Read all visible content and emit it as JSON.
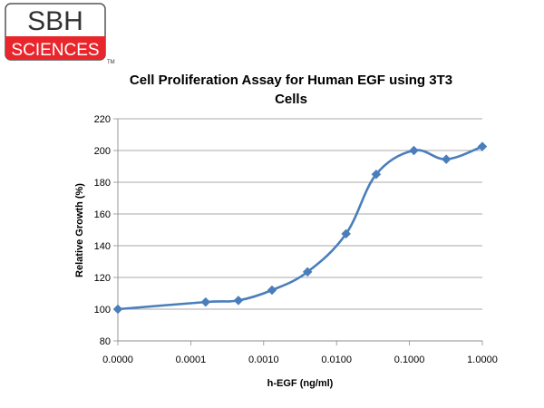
{
  "logo": {
    "top_text": "SBH",
    "bottom_text": "SCIENCES",
    "trademark": "TM",
    "red": "#e8262c"
  },
  "chart_data": {
    "type": "line",
    "title_line1": "Cell Proliferation Assay for Human EGF using 3T3",
    "title_line2": "Cells",
    "xlabel": "h-EGF (ng/ml)",
    "ylabel": "Relative Growth (%)",
    "x_scale": "log",
    "x_tick_labels": [
      "0.0000",
      "0.0001",
      "0.0010",
      "0.0100",
      "0.1000",
      "1.0000"
    ],
    "y_ticks": [
      80,
      100,
      120,
      140,
      160,
      180,
      200,
      220
    ],
    "ylim": [
      80,
      220
    ],
    "grid": "horizontal",
    "line_color": "#4a7ebb",
    "series": [
      {
        "x": [
          1e-05,
          0.00016,
          0.00045,
          0.0013,
          0.004,
          0.0135,
          0.035,
          0.115,
          0.32,
          1.0
        ],
        "values": [
          100,
          104.5,
          105.5,
          112,
          123.5,
          147.5,
          185,
          200,
          194.5,
          202.5
        ]
      }
    ]
  }
}
